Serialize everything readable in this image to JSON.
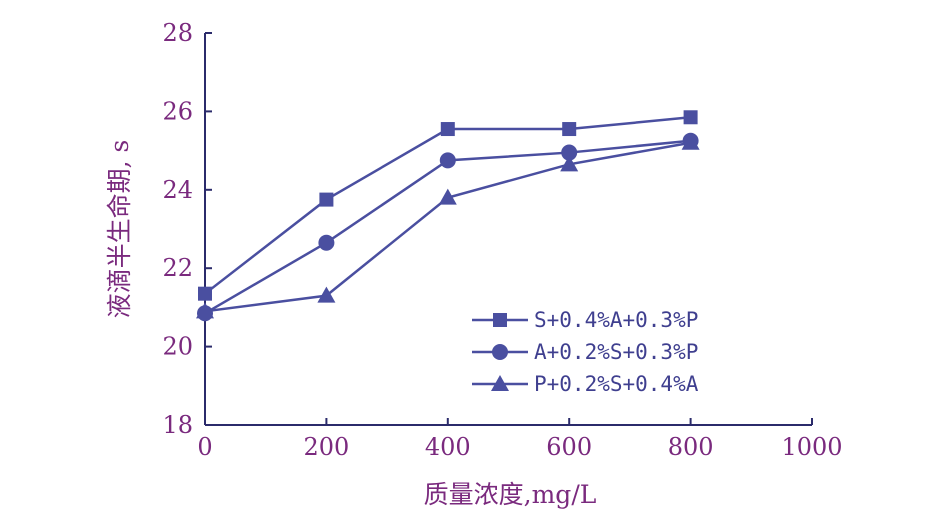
{
  "colors": {
    "axis": "#2b2b6b",
    "series": "#4a4fa0",
    "labels": "#7a2a7e",
    "legend_text": "#3f3f8f"
  },
  "chart_data": {
    "type": "line",
    "title": "",
    "xlabel": "质量浓度,mg/L",
    "ylabel": "液滴半生命期, s",
    "xlim": [
      0,
      1000
    ],
    "ylim": [
      18,
      28
    ],
    "x_ticks": [
      "0",
      "200",
      "400",
      "600",
      "800",
      "1000"
    ],
    "y_ticks": [
      "18",
      "20",
      "22",
      "24",
      "26",
      "28"
    ],
    "grid": false,
    "legend_position": "center-right",
    "x": [
      0,
      200,
      400,
      600,
      800
    ],
    "series": [
      {
        "name": "S+0.4%A+0.3%P",
        "marker": "square",
        "values": [
          21.35,
          23.75,
          25.55,
          25.55,
          25.85
        ]
      },
      {
        "name": "A+0.2%S+0.3%P",
        "marker": "circle",
        "values": [
          20.85,
          22.65,
          24.75,
          24.95,
          25.25
        ]
      },
      {
        "name": "P+0.2%S+0.4%A",
        "marker": "triangle",
        "values": [
          20.9,
          21.3,
          23.8,
          24.65,
          25.2
        ]
      }
    ]
  }
}
